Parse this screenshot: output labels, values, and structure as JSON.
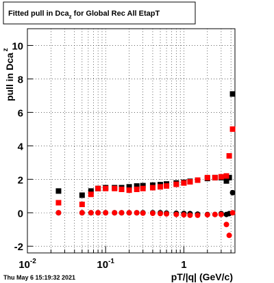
{
  "chart_data": {
    "type": "scatter",
    "title": {
      "text": "Fitted pull in Dca",
      "subscript": "z",
      "rest": " for Global Rec All EtapT"
    },
    "y_label": {
      "text": "pull in Dca",
      "subscript": "z"
    },
    "x_label": "pT/|q| (GeV/c)",
    "footer": "Thu May  6 15:19:32 2021",
    "log_x": true,
    "grid": true,
    "xlim": [
      0.01,
      4.5
    ],
    "ylim": [
      -2.4,
      11
    ],
    "xticks": [
      {
        "value": 0.01,
        "label": "10",
        "exponent": "-2"
      },
      {
        "value": 0.1,
        "label": "10",
        "exponent": "-1"
      },
      1
    ],
    "xminorticks": [
      0.02,
      0.03,
      0.04,
      0.05,
      0.06,
      0.07,
      0.08,
      0.09,
      0.2,
      0.3,
      0.4,
      0.5,
      0.6,
      0.7,
      0.8,
      0.9,
      2,
      3,
      4
    ],
    "yticks": [
      -2,
      0,
      2,
      4,
      6,
      8,
      10
    ],
    "x": [
      0.025,
      0.05,
      0.065,
      0.08,
      0.1,
      0.13,
      0.16,
      0.2,
      0.25,
      0.3,
      0.4,
      0.5,
      0.6,
      0.8,
      1.0,
      1.2,
      1.5,
      2.0,
      2.5,
      3.0,
      3.5,
      3.8,
      4.2
    ],
    "series": [
      {
        "marker": "square",
        "color": "#000000",
        "values": [
          1.3,
          1.05,
          1.3,
          1.45,
          1.5,
          1.5,
          1.5,
          1.55,
          1.6,
          1.62,
          1.65,
          1.68,
          1.72,
          1.78,
          1.82,
          1.88,
          1.95,
          2.05,
          2.1,
          2.1,
          1.9,
          2.1,
          7.1
        ]
      },
      {
        "marker": "square",
        "color": "#ff0000",
        "values": [
          0.6,
          0.5,
          1.1,
          1.45,
          1.45,
          1.45,
          1.4,
          1.35,
          1.4,
          1.45,
          1.5,
          1.55,
          1.6,
          1.7,
          1.78,
          1.85,
          1.95,
          2.1,
          2.1,
          2.15,
          2.2,
          3.4,
          5.0
        ]
      },
      {
        "marker": "circle",
        "color": "#000000",
        "values": [
          0,
          0,
          0,
          0,
          0,
          0,
          0,
          0,
          0,
          0,
          0,
          0,
          -0.02,
          -0.03,
          -0.04,
          -0.05,
          -0.08,
          -0.1,
          -0.1,
          -0.05,
          -0.1,
          -0.05,
          1.2
        ]
      },
      {
        "marker": "circle",
        "color": "#ff0000",
        "values": [
          0,
          0,
          0,
          0,
          0,
          0,
          0,
          0,
          0,
          -0.02,
          -0.03,
          -0.05,
          -0.07,
          -0.1,
          -0.12,
          -0.15,
          -0.15,
          -0.12,
          -0.1,
          -0.1,
          -0.7,
          -1.35,
          0
        ]
      }
    ]
  }
}
